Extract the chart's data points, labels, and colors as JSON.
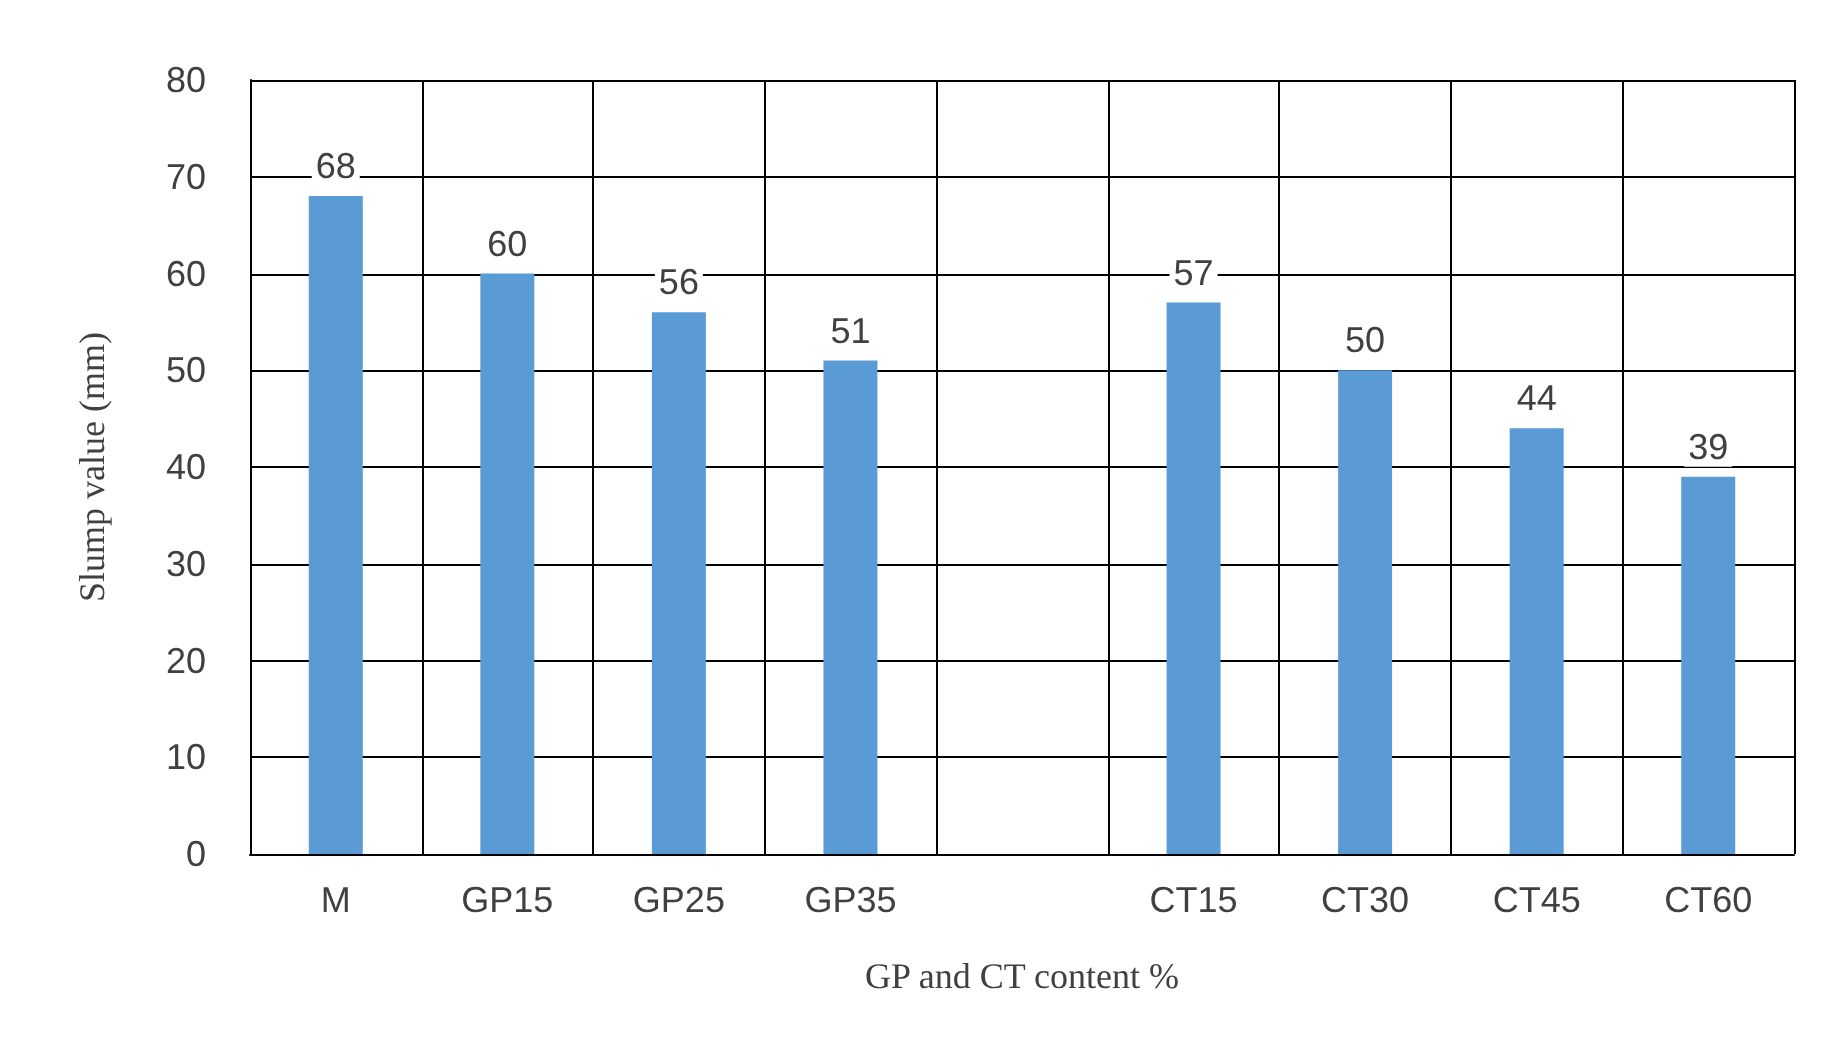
{
  "chart_data": {
    "type": "bar",
    "xlabel": "GP and CT content %",
    "ylabel": "Slump value (mm)",
    "categories": [
      "M",
      "GP15",
      "GP25",
      "GP35",
      null,
      "CT15",
      "CT30",
      "CT45",
      "CT60"
    ],
    "values": [
      68,
      60,
      56,
      51,
      null,
      57,
      50,
      44,
      39
    ],
    "color": "#5b9bd5",
    "ylim": [
      0,
      80
    ],
    "yticks": [
      0,
      10,
      20,
      30,
      40,
      50,
      60,
      70,
      80
    ],
    "grid": true,
    "data_labels": true
  }
}
